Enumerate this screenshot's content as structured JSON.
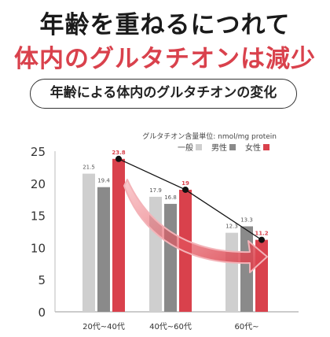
{
  "header": {
    "title_line1": "年齢を重ねるにつれて",
    "title_line2": "体内のグルタチオンは減少",
    "subtitle": "年齢による体内のグルタチオンの変化"
  },
  "colors": {
    "accent_red": "#d9414c",
    "general_gray": "#cfcfcf",
    "male_gray": "#8a8a8a",
    "female_red": "#d9414c"
  },
  "chart_data": {
    "type": "bar",
    "unit_label": "グルタチオン含量単位: nmol/mg protein",
    "categories": [
      "20代~40代",
      "40代~60代",
      "60代~"
    ],
    "series": [
      {
        "name": "一般",
        "values": [
          21.5,
          17.9,
          12.3
        ]
      },
      {
        "name": "男性",
        "values": [
          19.4,
          16.8,
          13.3
        ]
      },
      {
        "name": "女性",
        "values": [
          23.8,
          19,
          11.2
        ]
      }
    ],
    "value_labels": [
      [
        "21.5",
        "19.4",
        "23.8"
      ],
      [
        "17.9",
        "16.8",
        "19"
      ],
      [
        "12.3",
        "13.3",
        "11.2"
      ]
    ],
    "trend_line": "女性",
    "ylim": [
      0,
      25
    ],
    "yticks": [
      "0",
      "5",
      "10",
      "15",
      "20",
      "25"
    ],
    "legend_position": "top-right",
    "grid": false
  }
}
